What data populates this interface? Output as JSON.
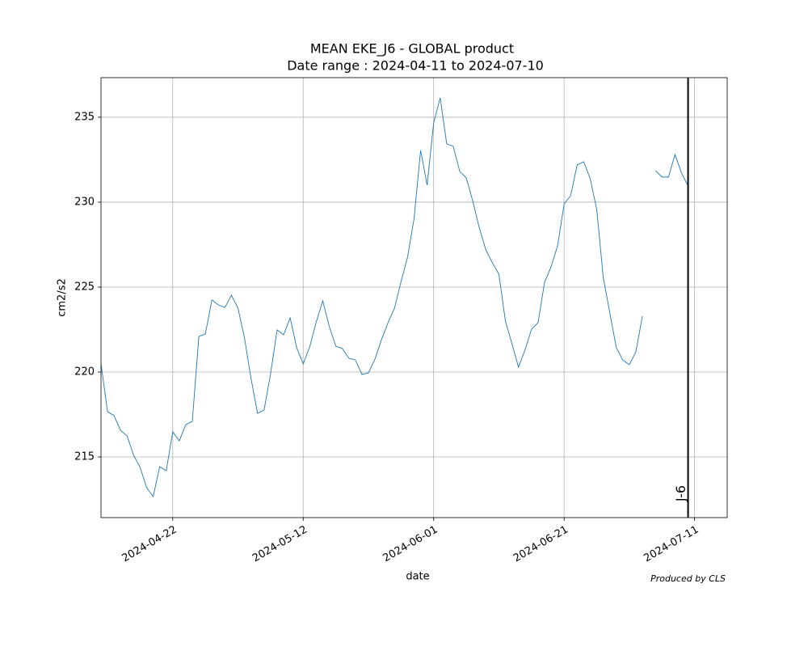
{
  "chart_data": {
    "type": "line",
    "title": "MEAN EKE_J6 - GLOBAL product",
    "subtitle": "Date range : 2024-04-11 to 2024-07-10",
    "x_label": "date",
    "y_label": "cm2/s2",
    "footnote": "Produced by CLS",
    "x": [
      "2024-04-11",
      "2024-04-12",
      "2024-04-13",
      "2024-04-14",
      "2024-04-15",
      "2024-04-16",
      "2024-04-17",
      "2024-04-18",
      "2024-04-19",
      "2024-04-20",
      "2024-04-21",
      "2024-04-22",
      "2024-04-23",
      "2024-04-24",
      "2024-04-25",
      "2024-04-26",
      "2024-04-27",
      "2024-04-28",
      "2024-04-29",
      "2024-04-30",
      "2024-05-01",
      "2024-05-02",
      "2024-05-03",
      "2024-05-04",
      "2024-05-05",
      "2024-05-06",
      "2024-05-07",
      "2024-05-08",
      "2024-05-09",
      "2024-05-10",
      "2024-05-11",
      "2024-05-12",
      "2024-05-13",
      "2024-05-14",
      "2024-05-15",
      "2024-05-16",
      "2024-05-17",
      "2024-05-18",
      "2024-05-19",
      "2024-05-20",
      "2024-05-21",
      "2024-05-22",
      "2024-05-23",
      "2024-05-24",
      "2024-05-25",
      "2024-05-26",
      "2024-05-27",
      "2024-05-28",
      "2024-05-29",
      "2024-05-30",
      "2024-05-31",
      "2024-06-01",
      "2024-06-02",
      "2024-06-03",
      "2024-06-04",
      "2024-06-05",
      "2024-06-06",
      "2024-06-07",
      "2024-06-08",
      "2024-06-09",
      "2024-06-10",
      "2024-06-11",
      "2024-06-12",
      "2024-06-13",
      "2024-06-14",
      "2024-06-15",
      "2024-06-16",
      "2024-06-17",
      "2024-06-18",
      "2024-06-19",
      "2024-06-20",
      "2024-06-21",
      "2024-06-22",
      "2024-06-23",
      "2024-06-24",
      "2024-06-25",
      "2024-06-26",
      "2024-06-27",
      "2024-06-28",
      "2024-06-29",
      "2024-06-30",
      "2024-07-01",
      "2024-07-02",
      "2024-07-03",
      "2024-07-04",
      "2024-07-05",
      "2024-07-06",
      "2024-07-07",
      "2024-07-08",
      "2024-07-09",
      "2024-07-10"
    ],
    "values": [
      220.48,
      217.67,
      217.43,
      216.57,
      216.24,
      215.1,
      214.38,
      213.19,
      212.67,
      214.43,
      214.19,
      216.48,
      215.95,
      216.9,
      217.1,
      222.1,
      222.24,
      224.24,
      223.95,
      223.8,
      224.52,
      223.76,
      222.0,
      219.62,
      217.57,
      217.76,
      219.9,
      222.48,
      222.19,
      223.19,
      221.43,
      220.48,
      221.48,
      222.95,
      224.19,
      222.67,
      221.52,
      221.38,
      220.81,
      220.71,
      219.86,
      219.95,
      220.76,
      221.9,
      222.9,
      223.76,
      225.33,
      226.76,
      229.05,
      233.05,
      231.0,
      234.67,
      236.14,
      233.43,
      233.29,
      231.81,
      231.43,
      230.05,
      228.48,
      227.19,
      226.43,
      225.76,
      223.0,
      221.67,
      220.29,
      221.29,
      222.52,
      222.9,
      225.29,
      226.19,
      227.43,
      229.9,
      230.38,
      232.19,
      232.38,
      231.38,
      229.57,
      225.57,
      223.48,
      221.43,
      220.71,
      220.43,
      221.19,
      223.29,
      null,
      231.86,
      231.48,
      231.48,
      232.81,
      231.71,
      230.95
    ],
    "color": "#1f77b4",
    "xlim": [
      "2024-04-11",
      "2024-07-16"
    ],
    "xticks": [
      "2024-04-22",
      "2024-05-12",
      "2024-06-01",
      "2024-06-21",
      "2024-07-11"
    ],
    "ylim": [
      211.43,
      237.33
    ],
    "yticks": [
      215,
      220,
      225,
      230,
      235
    ],
    "grid": true,
    "vline": {
      "x": "2024-07-10",
      "label": "J-6",
      "color": "#000000"
    }
  }
}
